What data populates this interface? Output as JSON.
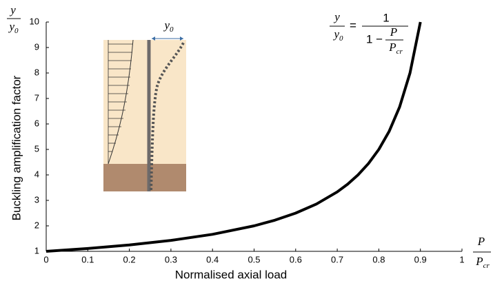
{
  "chart_data": {
    "type": "line",
    "x_label": "Normalised axial load",
    "y_label": "Buckling amplification factor",
    "y_symbol": {
      "numerator": "y",
      "denominator": {
        "base": "y",
        "sub": "0"
      }
    },
    "x_symbol": {
      "numerator": "P",
      "denominator": {
        "base": "P",
        "sub": "cr"
      }
    },
    "formula": {
      "lhs_numerator": "y",
      "lhs_denominator": {
        "base": "y",
        "sub": "0"
      },
      "equals": "=",
      "rhs_numerator": "1",
      "rhs_denominator_prefix": "1 −",
      "inner_numerator": "P",
      "inner_denominator": {
        "base": "P",
        "sub": "cr"
      }
    },
    "inset_label": {
      "base": "y",
      "sub": "0"
    },
    "x": [
      0,
      0.1,
      0.2,
      0.3,
      0.4,
      0.5,
      0.55,
      0.6,
      0.65,
      0.7,
      0.725,
      0.75,
      0.775,
      0.8,
      0.825,
      0.85,
      0.875,
      0.9
    ],
    "series": [
      {
        "color": "#000000",
        "values": [
          1,
          1.111,
          1.25,
          1.429,
          1.667,
          2,
          2.222,
          2.5,
          2.857,
          3.333,
          3.636,
          4,
          4.444,
          5,
          5.714,
          6.667,
          8,
          10
        ]
      }
    ],
    "xlim": [
      0,
      1
    ],
    "ylim": [
      1,
      10
    ],
    "xticks": [
      0,
      0.1,
      0.2,
      0.3,
      0.4,
      0.5,
      0.6,
      0.7,
      0.8,
      0.9,
      1
    ],
    "yticks": [
      1,
      2,
      3,
      4,
      5,
      6,
      7,
      8,
      9,
      10
    ],
    "grid": false
  }
}
